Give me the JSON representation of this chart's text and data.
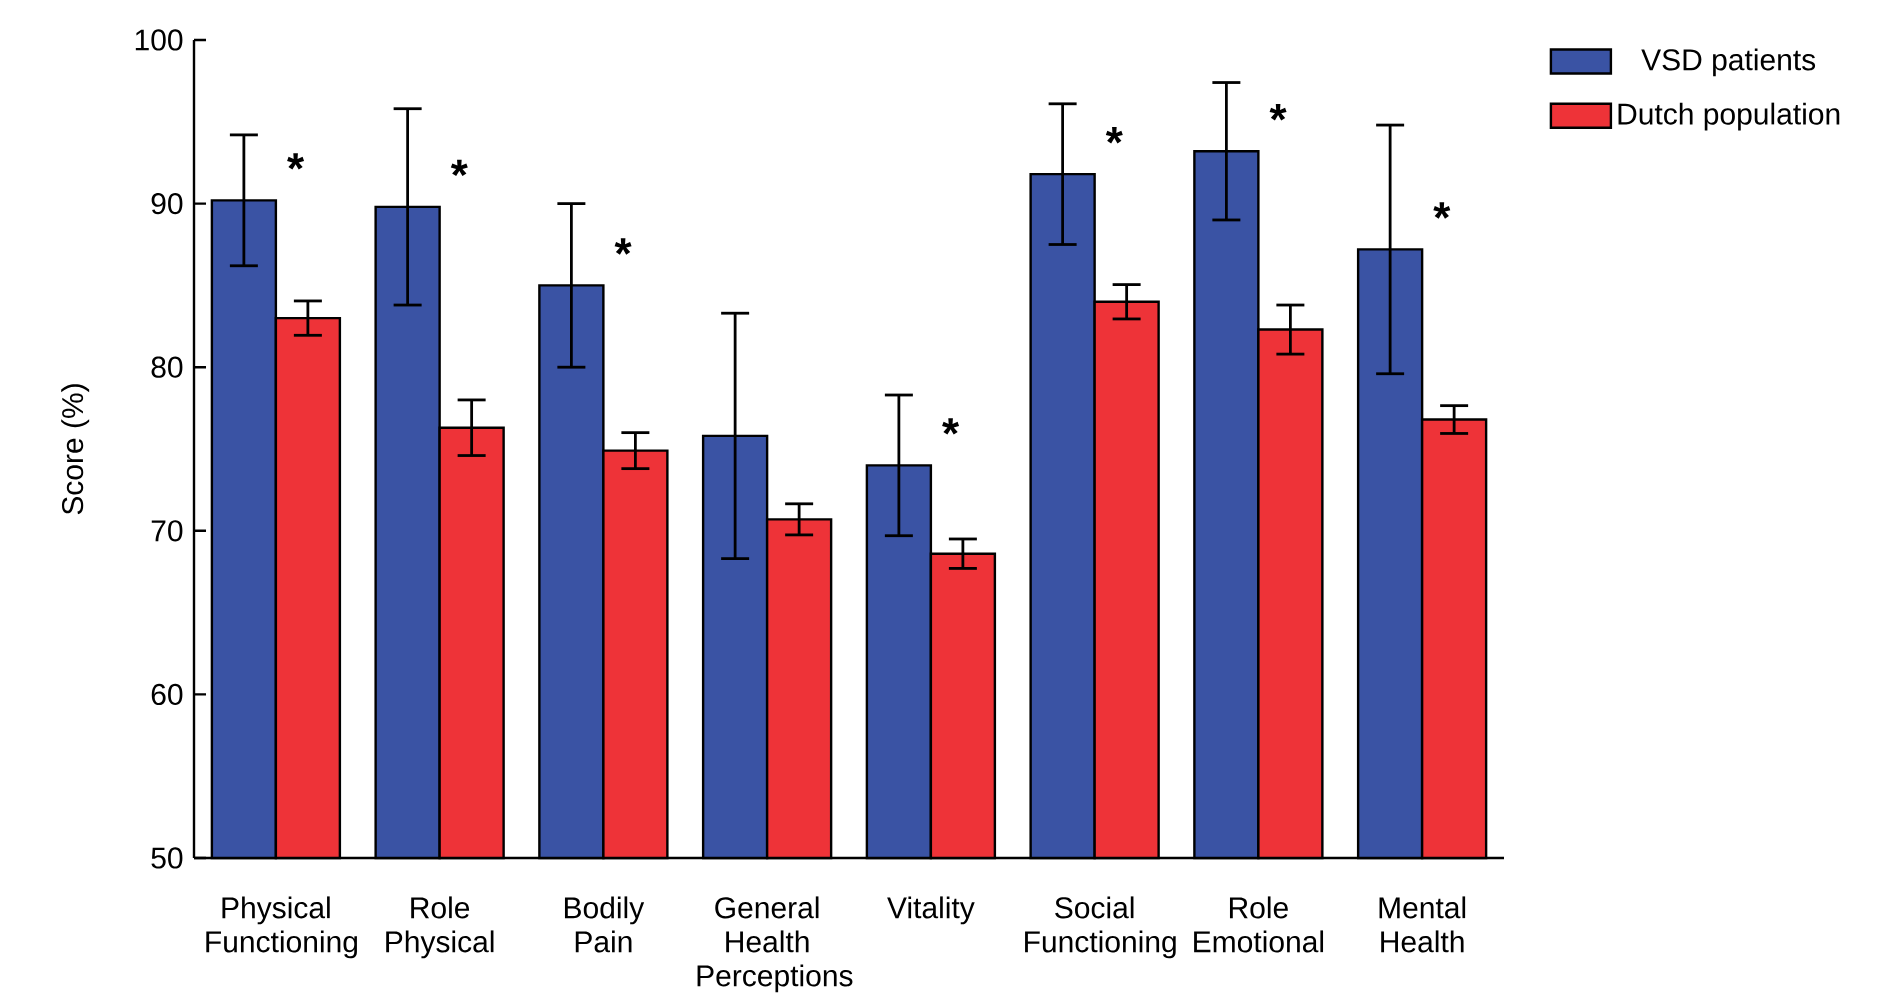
{
  "chart_data": {
    "type": "bar",
    "ylabel": "Score (%)",
    "categories": [
      "Physical Functioning",
      "Role Physical",
      "Bodily Pain",
      "General Health Perceptions",
      "Vitality",
      "Social Functioning",
      "Role Emotional",
      "Mental Health"
    ],
    "series": [
      {
        "name": "VSD patients",
        "color": "#3a53a4",
        "values": [
          90.2,
          89.8,
          85.0,
          75.8,
          74.0,
          91.8,
          93.2,
          87.2
        ],
        "errors": [
          4.0,
          6.0,
          5.0,
          7.5,
          4.3,
          4.3,
          4.2,
          7.6
        ]
      },
      {
        "name": "Dutch population",
        "color": "#ee3338",
        "values": [
          83.0,
          76.3,
          74.9,
          70.7,
          68.6,
          84.0,
          82.3,
          76.8
        ],
        "errors": [
          1.05,
          1.7,
          1.1,
          0.95,
          0.9,
          1.05,
          1.5,
          0.85
        ]
      }
    ],
    "annotations": [
      {
        "text": "*",
        "x": "Physical Functioning",
        "y": 90.2
      },
      {
        "text": "*",
        "x": "Role Physical",
        "y": 89.8
      },
      {
        "text": "*",
        "x": "Bodily Pain",
        "y": 85.0
      },
      {
        "text": "*",
        "x": "Vitality",
        "y": 74.0
      },
      {
        "text": "*",
        "x": "Social Functioning",
        "y": 91.8
      },
      {
        "text": "*",
        "x": "Role Emotional",
        "y": 93.2
      },
      {
        "text": "*",
        "x": "Mental Health",
        "y": 87.2
      }
    ],
    "ylim": [
      50,
      100
    ],
    "yticks": [
      50,
      60,
      70,
      80,
      90,
      100
    ],
    "grid": false,
    "legend": "top right"
  }
}
